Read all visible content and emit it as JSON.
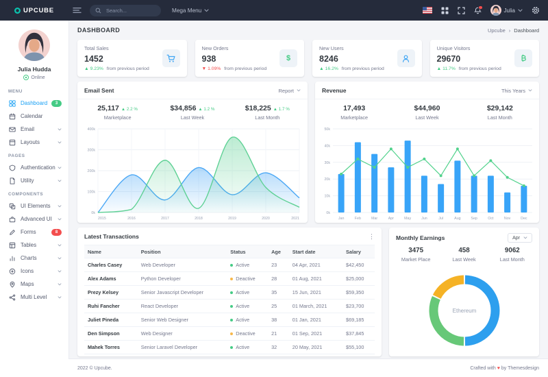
{
  "topbar": {
    "brand": "UPCUBE",
    "search_placeholder": "Search...",
    "mega_menu_label": "Mega Menu",
    "user_name": "Julia"
  },
  "page": {
    "title": "DASHBOARD",
    "breadcrumb": [
      "Upcube",
      "Dashboard"
    ]
  },
  "sidebar": {
    "user": {
      "name": "Julia Hudda",
      "status": "Online"
    },
    "sections": [
      {
        "label": "MENU",
        "items": [
          {
            "label": "Dashboard",
            "icon": "dashboard-icon",
            "active": true,
            "badge": "3",
            "badge_color": "#45cb85"
          },
          {
            "label": "Calendar",
            "icon": "calendar-icon"
          },
          {
            "label": "Email",
            "icon": "email-icon",
            "chevron": true
          },
          {
            "label": "Layouts",
            "icon": "layouts-icon",
            "chevron": true
          }
        ]
      },
      {
        "label": "PAGES",
        "items": [
          {
            "label": "Authentication",
            "icon": "authentication-icon",
            "chevron": true
          },
          {
            "label": "Utility",
            "icon": "utility-icon",
            "chevron": true
          }
        ]
      },
      {
        "label": "COMPONENTS",
        "items": [
          {
            "label": "UI Elements",
            "icon": "ui-elements-icon",
            "chevron": true
          },
          {
            "label": "Advanced UI",
            "icon": "advanced-ui-icon",
            "chevron": true
          },
          {
            "label": "Forms",
            "icon": "forms-icon",
            "badge": "8",
            "badge_color": "#f34e4e"
          },
          {
            "label": "Tables",
            "icon": "tables-icon",
            "chevron": true
          },
          {
            "label": "Charts",
            "icon": "charts-icon",
            "chevron": true
          },
          {
            "label": "Icons",
            "icon": "icons-icon",
            "chevron": true
          },
          {
            "label": "Maps",
            "icon": "maps-icon",
            "chevron": true
          },
          {
            "label": "Multi Level",
            "icon": "multi-level-icon",
            "chevron": true
          }
        ]
      }
    ]
  },
  "stat_cards": [
    {
      "label": "Total Sales",
      "value": "1452",
      "delta": "9.23%",
      "delta_dir": "up",
      "delta_color": "#45cb85",
      "suffix": "from previous period",
      "icon": "cart-icon"
    },
    {
      "label": "New Orders",
      "value": "938",
      "delta": "1.09%",
      "delta_dir": "down",
      "delta_color": "#f34e4e",
      "suffix": "from previous period",
      "icon": "dollar-icon"
    },
    {
      "label": "New Users",
      "value": "8246",
      "delta": "16.2%",
      "delta_dir": "up",
      "delta_color": "#45cb85",
      "suffix": "from previous period",
      "icon": "user-icon"
    },
    {
      "label": "Unique Visitors",
      "value": "29670",
      "delta": "11.7%",
      "delta_dir": "up",
      "delta_color": "#45cb85",
      "suffix": "from previous period",
      "icon": "bitcoin-icon"
    }
  ],
  "email_sent": {
    "title": "Email Sent",
    "menu_label": "Report",
    "stats": [
      {
        "value": "25,117",
        "delta": "2.2 %",
        "label": "Marketplace"
      },
      {
        "value": "$34,856",
        "delta": "1.2 %",
        "label": "Last Week"
      },
      {
        "value": "$18,225",
        "delta": "1.7 %",
        "label": "Last Month"
      }
    ],
    "chart_data": {
      "type": "area",
      "x": [
        "2015",
        "2016",
        "2017",
        "2018",
        "2019",
        "2020",
        "2021"
      ],
      "series": [
        {
          "name": "series-blue",
          "color": "#4aa7f5",
          "values": [
            0,
            180,
            60,
            215,
            85,
            190,
            70
          ]
        },
        {
          "name": "series-green",
          "color": "#5fd195",
          "values": [
            0,
            15,
            250,
            20,
            360,
            120,
            25
          ]
        }
      ],
      "ylim": [
        0,
        400
      ],
      "yticks": [
        "0k",
        "100k",
        "200k",
        "300k",
        "400k"
      ],
      "grid": "on",
      "unit": "thousands"
    }
  },
  "revenue": {
    "title": "Revenue",
    "menu_label": "This Years",
    "stats": [
      {
        "value": "17,493",
        "label": "Marketplace"
      },
      {
        "value": "$44,960",
        "label": "Last Week"
      },
      {
        "value": "$29,142",
        "label": "Last Month"
      }
    ],
    "chart_data": {
      "type": "bar",
      "categories": [
        "Jan",
        "Feb",
        "Mar",
        "Apr",
        "May",
        "Jun",
        "Jul",
        "Aug",
        "Sep",
        "Oct",
        "Nov",
        "Dec"
      ],
      "series": [
        {
          "name": "bars",
          "type": "bar",
          "color": "#38a4f8",
          "values": [
            23,
            42,
            35,
            27,
            43,
            22,
            17,
            31,
            22,
            22,
            12,
            16
          ]
        },
        {
          "name": "line",
          "type": "line",
          "color": "#51d28c",
          "values": [
            23,
            32,
            27,
            38,
            27,
            32,
            22,
            38,
            22,
            31,
            21,
            16
          ]
        }
      ],
      "ylim": [
        0,
        50
      ],
      "yticks": [
        "0k",
        "10k",
        "20k",
        "30k",
        "40k",
        "50k"
      ],
      "grid": "on",
      "unit": "thousands"
    }
  },
  "transactions": {
    "title": "Latest Transactions",
    "columns": [
      "Name",
      "Position",
      "Status",
      "Age",
      "Start date",
      "Salary"
    ],
    "status_colors": {
      "Active": "#45cb85",
      "Deactive": "#f7b84b"
    },
    "rows": [
      {
        "name": "Charles Casey",
        "position": "Web Developer",
        "status": "Active",
        "age": "23",
        "start": "04 Apr, 2021",
        "salary": "$42,450"
      },
      {
        "name": "Alex Adams",
        "position": "Python Developer",
        "status": "Deactive",
        "age": "28",
        "start": "01 Aug, 2021",
        "salary": "$25,000"
      },
      {
        "name": "Prezy Kelsey",
        "position": "Senior Javascript Developer",
        "status": "Active",
        "age": "35",
        "start": "15 Jun, 2021",
        "salary": "$59,350"
      },
      {
        "name": "Ruhi Fancher",
        "position": "React Developer",
        "status": "Active",
        "age": "25",
        "start": "01 March, 2021",
        "salary": "$23,700"
      },
      {
        "name": "Juliet Pineda",
        "position": "Senior Web Designer",
        "status": "Active",
        "age": "38",
        "start": "01 Jan, 2021",
        "salary": "$69,185"
      },
      {
        "name": "Den Simpson",
        "position": "Web Designer",
        "status": "Deactive",
        "age": "21",
        "start": "01 Sep, 2021",
        "salary": "$37,845"
      },
      {
        "name": "Mahek Torres",
        "position": "Senior Laravel Developer",
        "status": "Active",
        "age": "32",
        "start": "20 May, 2021",
        "salary": "$55,100"
      }
    ]
  },
  "monthly_earnings": {
    "title": "Monthly Earnings",
    "select_value": "Apr",
    "stats": [
      {
        "value": "3475",
        "label": "Market Place"
      },
      {
        "value": "458",
        "label": "Last Week"
      },
      {
        "value": "9062",
        "label": "Last Month"
      }
    ],
    "chart_data": {
      "type": "pie",
      "center_label": "Ethereum",
      "slices": [
        {
          "label": "slice-blue",
          "value": 50,
          "color": "#2d9fee"
        },
        {
          "label": "slice-green",
          "value": 32,
          "color": "#67c878"
        },
        {
          "label": "slice-orange",
          "value": 18,
          "color": "#f5b225"
        }
      ]
    }
  },
  "footer": {
    "left": "2022 © Upcube.",
    "right_prefix": "Crafted with",
    "right_heart": "♥",
    "right_suffix": "by Themesdesign"
  }
}
